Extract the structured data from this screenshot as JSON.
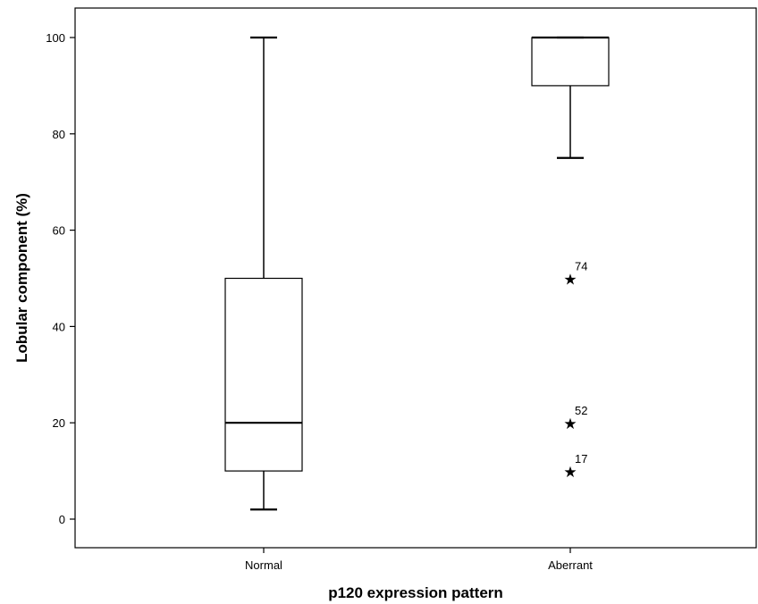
{
  "chart_data": {
    "type": "box",
    "xlabel": "p120 expression pattern",
    "ylabel": "Lobular component (%)",
    "ylim": [
      -5,
      106
    ],
    "yticks": [
      0,
      20,
      40,
      60,
      80,
      100
    ],
    "yticks_labels": [
      "0",
      "20",
      "40",
      "60",
      "80",
      "100"
    ],
    "grid": false,
    "categories": [
      "Normal",
      "Aberrant"
    ],
    "boxes": [
      {
        "category": "Normal",
        "whisker_low": 2,
        "q1": 10,
        "median": 20,
        "q3": 50,
        "whisker_high": 100,
        "outliers": []
      },
      {
        "category": "Aberrant",
        "whisker_low": 75,
        "q1": 90,
        "median": 100,
        "q3": 100,
        "whisker_high": 100,
        "outliers": [
          {
            "value": 50,
            "label": "74"
          },
          {
            "value": 20,
            "label": "52"
          },
          {
            "value": 10,
            "label": "17"
          }
        ]
      }
    ]
  }
}
